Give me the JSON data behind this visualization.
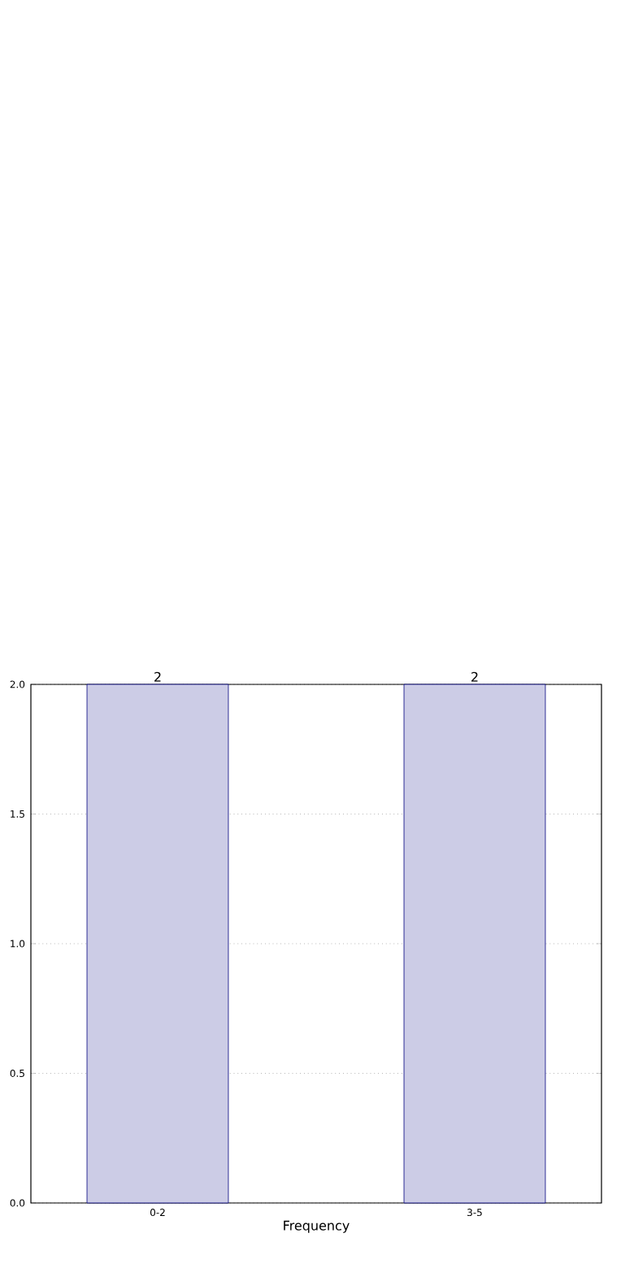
{
  "chart_data": {
    "type": "bar",
    "xlabel": "Frequency",
    "categories": [
      "0-2",
      "3-5"
    ],
    "values": [
      2,
      2
    ],
    "color": "#cccce6",
    "ylim": [
      0,
      2
    ],
    "yticks": [
      {
        "value": 0,
        "label": "0.0"
      },
      {
        "value": 0.5,
        "label": "0.5"
      },
      {
        "value": 1,
        "label": "1.0"
      },
      {
        "value": 1.5,
        "label": "1.5"
      },
      {
        "value": 2,
        "label": "2.0"
      }
    ],
    "grid": true,
    "data_labels": true
  }
}
